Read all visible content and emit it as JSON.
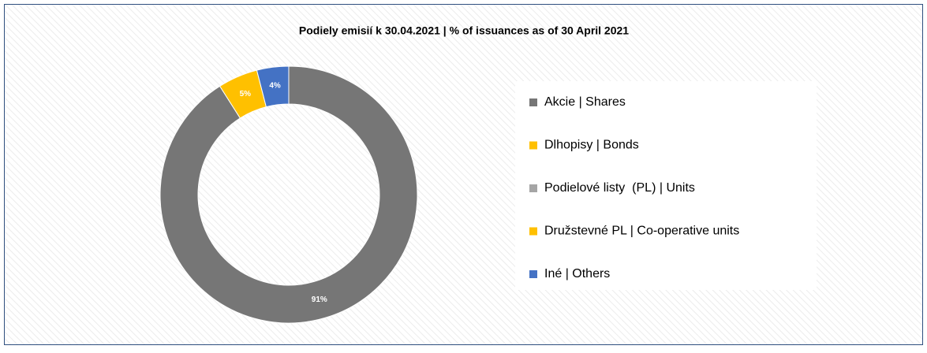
{
  "chart_data": {
    "type": "donut",
    "title": "Podiely emisií k 30.04.2021 | % of issuances as of 30 April 2021",
    "categories": [
      "Akcie | Shares",
      "Dlhopisy | Bonds",
      "Podielové listy  (PL) | Units",
      "Družstevné PL | Co-operative units",
      "Iné | Others"
    ],
    "values": [
      91,
      5,
      0,
      0,
      4
    ],
    "value_labels": [
      "91%",
      "5%",
      null,
      null,
      "4%"
    ],
    "colors": [
      "#767676",
      "#ffc000",
      "#a5a5a5",
      "#ffc000",
      "#4472c4"
    ],
    "legend": "right"
  }
}
